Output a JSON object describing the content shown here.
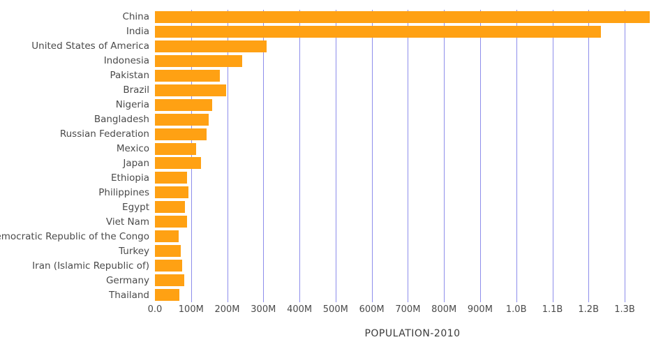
{
  "chart_data": {
    "type": "bar",
    "orientation": "horizontal",
    "title": "POPULATION-2010",
    "xlabel": "POPULATION-2010",
    "ylabel": "",
    "categories": [
      "China",
      "India",
      "United States of America",
      "Indonesia",
      "Pakistan",
      "Brazil",
      "Nigeria",
      "Bangladesh",
      "Russian Federation",
      "Mexico",
      "Japan",
      "Ethiopia",
      "Philippines",
      "Egypt",
      "Viet Nam",
      "Democratic Republic of the Congo",
      "Turkey",
      "Iran (Islamic Republic of)",
      "Germany",
      "Thailand"
    ],
    "values_millions": [
      1369,
      1234,
      309,
      242,
      179,
      196,
      158,
      148,
      143,
      114,
      128,
      88,
      93,
      83,
      88,
      65,
      72,
      75,
      81,
      67
    ],
    "x_ticks": [
      "0.0",
      "100M",
      "200M",
      "300M",
      "400M",
      "500M",
      "600M",
      "700M",
      "800M",
      "900M",
      "1.0B",
      "1.1B",
      "1.2B",
      "1.3B"
    ],
    "x_tick_values_millions": [
      0,
      100,
      200,
      300,
      400,
      500,
      600,
      700,
      800,
      900,
      1000,
      1100,
      1200,
      1300
    ],
    "xlim_millions": [
      0,
      1426
    ],
    "grid": true,
    "legend": false,
    "bar_color": "#FFA113",
    "gridline_color": "#8D8DEB",
    "label_color": "#4A4A4A",
    "title_color": "#3A3A3A"
  }
}
